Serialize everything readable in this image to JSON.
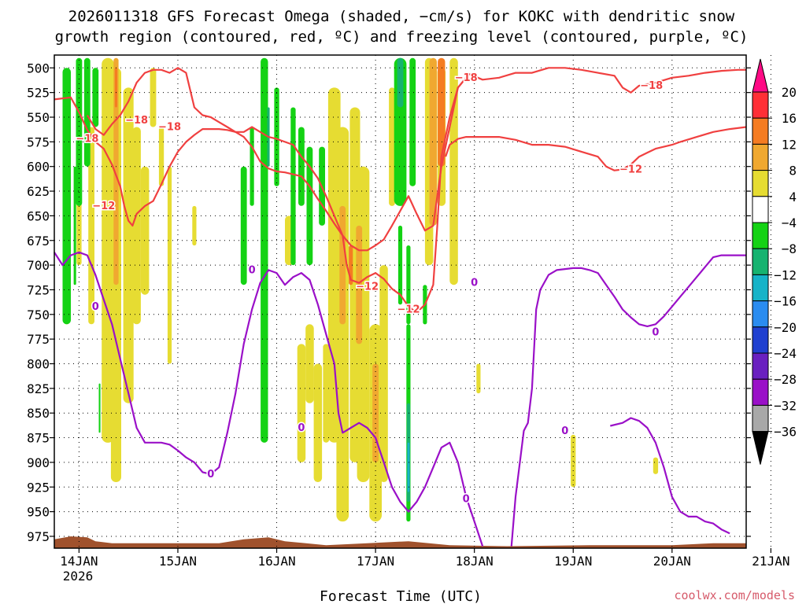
{
  "chart_data": {
    "type": "heatmap",
    "title_lines": [
      "2026011318 GFS Forecast Omega (shaded, −cm/s) for KOKC with dendritic snow",
      "growth region (contoured, red, ºC) and freezing level (contoured, purple, ºC)"
    ],
    "xlabel": "Forecast Time (UTC)",
    "credit": "coolwx.com/models",
    "x_ticks": [
      "14JAN",
      "15JAN",
      "16JAN",
      "17JAN",
      "18JAN",
      "19JAN",
      "20JAN",
      "21JAN"
    ],
    "x_year_label": "2026",
    "x_range_hours": [
      0,
      168
    ],
    "y_ticks": [
      500,
      525,
      550,
      575,
      600,
      625,
      650,
      675,
      700,
      725,
      750,
      775,
      800,
      825,
      850,
      875,
      900,
      925,
      950,
      975
    ],
    "y_range_hPa": [
      487,
      987
    ],
    "grid": true,
    "colorbar": {
      "labels": [
        "20",
        "16",
        "12",
        "8",
        "4",
        "−4",
        "−8",
        "−12",
        "−16",
        "−20",
        "−24",
        "−28",
        "−32",
        "−36"
      ],
      "bands": [
        {
          "min": 20,
          "max": null,
          "color": "#ff0a85"
        },
        {
          "min": 16,
          "max": 20,
          "color": "#ff2f36"
        },
        {
          "min": 12,
          "max": 16,
          "color": "#f57c22"
        },
        {
          "min": 8,
          "max": 12,
          "color": "#f0a830"
        },
        {
          "min": 4,
          "max": 8,
          "color": "#e6dc32"
        },
        {
          "min": -4,
          "max": 4,
          "color": "#ffffff"
        },
        {
          "min": -8,
          "max": -4,
          "color": "#14d214"
        },
        {
          "min": -12,
          "max": -8,
          "color": "#16b370"
        },
        {
          "min": -16,
          "max": -12,
          "color": "#16b3c8"
        },
        {
          "min": -20,
          "max": -16,
          "color": "#2a8cf0"
        },
        {
          "min": -24,
          "max": -20,
          "color": "#2040d0"
        },
        {
          "min": -28,
          "max": -24,
          "color": "#6a20c0"
        },
        {
          "min": -32,
          "max": -28,
          "color": "#9a10c8"
        },
        {
          "min": -36,
          "max": -32,
          "color": "#a8a8a8"
        },
        {
          "min": null,
          "max": -36,
          "color": "#000000"
        }
      ]
    },
    "colors": {
      "dgz_contour": "#f04040",
      "freezing_contour": "#9a10c8",
      "terrain": "#a0522d",
      "ascent_light": "#e6dc32",
      "ascent_mid": "#f0a830",
      "ascent_strong": "#f57c22",
      "descent_light": "#14d214",
      "descent_mid": "#16b370",
      "descent_strong": "#16b3c8"
    },
    "contour_labels": [
      {
        "text": "−18",
        "t": 8,
        "p": 572
      },
      {
        "text": "−18",
        "t": 20,
        "p": 553
      },
      {
        "text": "−18",
        "t": 28,
        "p": 560
      },
      {
        "text": "−18",
        "t": 100,
        "p": 510
      },
      {
        "text": "−18",
        "t": 145,
        "p": 518
      },
      {
        "text": "−12",
        "t": 12,
        "p": 640
      },
      {
        "text": "−12",
        "t": 76,
        "p": 722
      },
      {
        "text": "−12",
        "t": 86,
        "p": 745
      },
      {
        "text": "−12",
        "t": 140,
        "p": 603
      },
      {
        "text": "0",
        "t": 10,
        "p": 742
      },
      {
        "text": "0",
        "t": 38,
        "p": 912
      },
      {
        "text": "0",
        "t": 48,
        "p": 705
      },
      {
        "text": "0",
        "t": 60,
        "p": 865
      },
      {
        "text": "0",
        "t": 100,
        "p": 937
      },
      {
        "text": "0",
        "t": 102,
        "p": 718
      },
      {
        "text": "0",
        "t": 124,
        "p": 868
      },
      {
        "text": "0",
        "t": 146,
        "p": 768
      }
    ],
    "series": [
      {
        "name": "",
        "kind": "dgz",
        "points": [
          [
            0,
            532
          ],
          [
            4,
            530
          ],
          [
            6,
            545
          ],
          [
            8,
            563
          ],
          [
            10,
            575
          ],
          [
            12,
            582
          ],
          [
            14,
            598
          ],
          [
            16,
            620
          ],
          [
            17,
            640
          ],
          [
            18,
            655
          ],
          [
            19,
            660
          ],
          [
            20,
            648
          ],
          [
            22,
            640
          ],
          [
            24,
            635
          ],
          [
            26,
            618
          ],
          [
            28,
            600
          ],
          [
            30,
            585
          ],
          [
            32,
            575
          ],
          [
            34,
            568
          ],
          [
            36,
            562
          ],
          [
            38,
            562
          ],
          [
            40,
            562
          ],
          [
            42,
            563
          ],
          [
            44,
            565
          ],
          [
            46,
            570
          ],
          [
            48,
            580
          ],
          [
            50,
            595
          ],
          [
            52,
            602
          ],
          [
            54,
            605
          ],
          [
            56,
            606
          ],
          [
            58,
            608
          ],
          [
            60,
            610
          ],
          [
            62,
            620
          ],
          [
            64,
            633
          ],
          [
            66,
            645
          ],
          [
            68,
            658
          ],
          [
            70,
            670
          ],
          [
            71,
            700
          ],
          [
            72,
            715
          ],
          [
            74,
            718
          ],
          [
            76,
            712
          ],
          [
            78,
            708
          ],
          [
            80,
            714
          ],
          [
            82,
            724
          ],
          [
            84,
            730
          ],
          [
            86,
            742
          ],
          [
            88,
            748
          ],
          [
            90,
            740
          ],
          [
            92,
            720
          ],
          [
            93,
            660
          ],
          [
            94,
            590
          ],
          [
            96,
            550
          ],
          [
            98,
            520
          ],
          [
            100,
            510
          ]
        ]
      },
      {
        "name": "",
        "kind": "dgz",
        "points": [
          [
            8,
            548
          ],
          [
            10,
            562
          ],
          [
            12,
            568
          ],
          [
            14,
            557
          ],
          [
            16,
            548
          ],
          [
            18,
            534
          ],
          [
            20,
            515
          ],
          [
            22,
            505
          ],
          [
            24,
            502
          ],
          [
            26,
            502
          ],
          [
            28,
            505
          ],
          [
            30,
            500
          ],
          [
            32,
            505
          ],
          [
            34,
            540
          ],
          [
            36,
            548
          ],
          [
            38,
            550
          ],
          [
            40,
            555
          ],
          [
            42,
            560
          ],
          [
            44,
            565
          ],
          [
            46,
            565
          ],
          [
            48,
            560
          ],
          [
            50,
            565
          ],
          [
            52,
            570
          ],
          [
            54,
            572
          ],
          [
            56,
            575
          ],
          [
            58,
            578
          ],
          [
            60,
            590
          ],
          [
            62,
            600
          ],
          [
            64,
            612
          ],
          [
            66,
            630
          ],
          [
            68,
            650
          ],
          [
            70,
            670
          ],
          [
            72,
            680
          ],
          [
            74,
            685
          ],
          [
            76,
            685
          ],
          [
            78,
            680
          ],
          [
            80,
            674
          ],
          [
            82,
            660
          ],
          [
            84,
            645
          ],
          [
            86,
            630
          ],
          [
            88,
            648
          ],
          [
            90,
            665
          ],
          [
            92,
            660
          ],
          [
            94,
            600
          ],
          [
            96,
            560
          ],
          [
            98,
            520
          ],
          [
            100,
            510
          ]
        ]
      },
      {
        "name": "",
        "kind": "dgz",
        "points": [
          [
            100,
            505
          ],
          [
            104,
            512
          ],
          [
            108,
            510
          ],
          [
            112,
            505
          ],
          [
            116,
            505
          ],
          [
            120,
            500
          ],
          [
            124,
            500
          ],
          [
            128,
            502
          ],
          [
            132,
            505
          ],
          [
            136,
            508
          ],
          [
            138,
            520
          ],
          [
            140,
            525
          ],
          [
            142,
            518
          ],
          [
            146,
            515
          ],
          [
            150,
            510
          ],
          [
            154,
            508
          ],
          [
            158,
            505
          ],
          [
            162,
            503
          ],
          [
            166,
            502
          ],
          [
            168,
            502
          ]
        ]
      },
      {
        "name": "",
        "kind": "dgz",
        "points": [
          [
            95,
            590
          ],
          [
            96,
            578
          ],
          [
            98,
            572
          ],
          [
            100,
            570
          ],
          [
            104,
            570
          ],
          [
            108,
            570
          ],
          [
            112,
            573
          ],
          [
            116,
            578
          ],
          [
            120,
            578
          ],
          [
            124,
            580
          ],
          [
            128,
            585
          ],
          [
            132,
            590
          ],
          [
            134,
            600
          ],
          [
            136,
            604
          ],
          [
            138,
            603
          ],
          [
            140,
            598
          ],
          [
            142,
            590
          ],
          [
            144,
            586
          ],
          [
            146,
            582
          ],
          [
            148,
            580
          ],
          [
            150,
            578
          ],
          [
            152,
            575
          ],
          [
            156,
            570
          ],
          [
            160,
            565
          ],
          [
            164,
            562
          ],
          [
            168,
            560
          ]
        ]
      },
      {
        "name": "",
        "kind": "freezing",
        "points": [
          [
            0,
            687
          ],
          [
            2,
            700
          ],
          [
            4,
            690
          ],
          [
            6,
            687
          ],
          [
            8,
            690
          ],
          [
            10,
            710
          ],
          [
            12,
            735
          ],
          [
            14,
            760
          ],
          [
            16,
            795
          ],
          [
            18,
            830
          ],
          [
            20,
            865
          ],
          [
            22,
            880
          ],
          [
            26,
            880
          ],
          [
            28,
            882
          ],
          [
            30,
            888
          ],
          [
            32,
            895
          ],
          [
            34,
            900
          ],
          [
            36,
            910
          ],
          [
            38,
            912
          ],
          [
            40,
            905
          ],
          [
            42,
            870
          ],
          [
            44,
            830
          ],
          [
            46,
            780
          ],
          [
            48,
            745
          ],
          [
            50,
            718
          ],
          [
            52,
            705
          ],
          [
            54,
            708
          ],
          [
            56,
            720
          ],
          [
            58,
            712
          ],
          [
            60,
            708
          ],
          [
            62,
            715
          ],
          [
            64,
            740
          ],
          [
            66,
            770
          ],
          [
            68,
            800
          ],
          [
            69,
            850
          ],
          [
            70,
            870
          ],
          [
            72,
            865
          ],
          [
            74,
            860
          ],
          [
            76,
            865
          ],
          [
            78,
            875
          ],
          [
            80,
            900
          ],
          [
            82,
            925
          ],
          [
            84,
            940
          ],
          [
            86,
            950
          ],
          [
            88,
            940
          ],
          [
            90,
            925
          ],
          [
            92,
            905
          ],
          [
            94,
            885
          ],
          [
            96,
            880
          ],
          [
            98,
            900
          ],
          [
            100,
            935
          ],
          [
            102,
            960
          ],
          [
            104,
            985
          ]
        ]
      },
      {
        "name": "",
        "kind": "freezing",
        "points": [
          [
            111,
            985
          ],
          [
            112,
            935
          ],
          [
            114,
            868
          ],
          [
            115,
            860
          ],
          [
            116,
            825
          ],
          [
            117,
            745
          ],
          [
            118,
            725
          ],
          [
            120,
            710
          ],
          [
            122,
            705
          ],
          [
            126,
            703
          ],
          [
            128,
            703
          ],
          [
            130,
            705
          ],
          [
            132,
            708
          ],
          [
            134,
            720
          ],
          [
            136,
            732
          ],
          [
            138,
            745
          ],
          [
            140,
            753
          ],
          [
            142,
            760
          ],
          [
            144,
            762
          ],
          [
            146,
            760
          ],
          [
            148,
            752
          ],
          [
            150,
            742
          ],
          [
            152,
            732
          ],
          [
            154,
            722
          ],
          [
            156,
            712
          ],
          [
            158,
            702
          ],
          [
            160,
            692
          ],
          [
            162,
            690
          ],
          [
            164,
            690
          ],
          [
            166,
            690
          ],
          [
            168,
            690
          ]
        ]
      },
      {
        "name": "",
        "kind": "freezing",
        "points": [
          [
            135,
            863
          ],
          [
            138,
            860
          ],
          [
            140,
            855
          ],
          [
            142,
            858
          ],
          [
            144,
            865
          ],
          [
            146,
            880
          ],
          [
            148,
            905
          ],
          [
            150,
            935
          ],
          [
            152,
            950
          ],
          [
            154,
            955
          ],
          [
            156,
            955
          ],
          [
            158,
            960
          ],
          [
            160,
            962
          ],
          [
            162,
            968
          ],
          [
            164,
            972
          ]
        ]
      }
    ]
  }
}
